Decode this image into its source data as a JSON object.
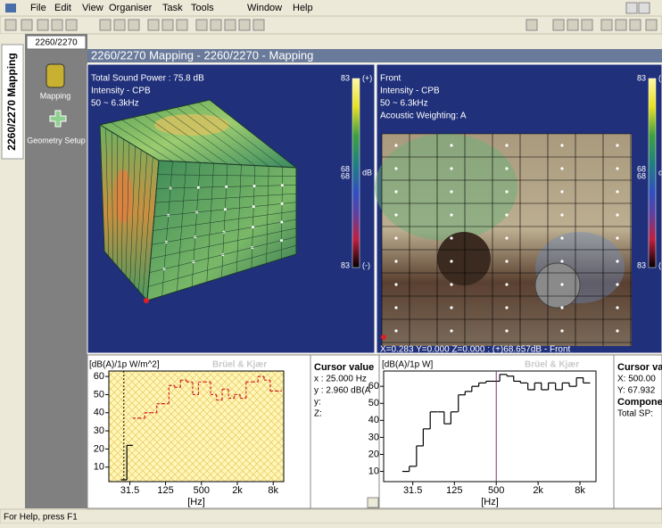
{
  "menu": [
    "File",
    "Edit",
    "View",
    "Organiser",
    "Task",
    "Tools",
    "Window",
    "Help"
  ],
  "vertical_tab": "2260/2270 Mapping",
  "panel_tab": "2260/2270",
  "window_title": "2260/2270 Mapping - 2260/2270 - Mapping",
  "sidebar": [
    "Mapping",
    "Geometry Setup"
  ],
  "views": [
    {
      "lines": [
        "Total Sound Power : 75.8 dB",
        "Intensity - CPB",
        "50 ~ 6.3kHz"
      ],
      "scale": {
        "top": "83",
        "top_sign": "(+)",
        "mid": [
          "68",
          "68"
        ],
        "unit": "dB",
        "bottom": "83",
        "bottom_sign": "(-)"
      }
    },
    {
      "lines": [
        "Front",
        "Intensity - CPB",
        "50 ~ 6.3kHz",
        "Acoustic Weighting: A"
      ],
      "scale": {
        "top": "83",
        "top_sign": "(+)",
        "mid": [
          "68",
          "68"
        ],
        "unit": "dB",
        "bottom": "83",
        "bottom_sign": "(-)"
      },
      "footer": "X=0.283 Y=0.000 Z=0.000 : (+)68.657dB - Front"
    }
  ],
  "cursor_panels": [
    {
      "title": "Cursor value",
      "lines": [
        "x : 25.000 Hz",
        "y : 2.960 dB(A",
        "y:",
        "Z:"
      ]
    },
    {
      "title": "Cursor va",
      "lines": [
        "X: 500.00",
        "Y: 67.932"
      ],
      "subtitle": "Compone",
      "more": [
        "Total SP:"
      ]
    }
  ],
  "status": "For Help, press F1",
  "chart_data": [
    {
      "type": "step",
      "y_label": "[dB(A)/1p W/m^2]",
      "watermark": "Brüel & Kjær",
      "x_label": "[Hz]",
      "x": [
        25,
        31.5,
        40,
        50,
        63,
        80,
        100,
        125,
        160,
        200,
        250,
        315,
        400,
        500,
        630,
        800,
        1000,
        1250,
        1600,
        2000,
        2500,
        3150,
        4000,
        5000,
        6300,
        8000,
        10000
      ],
      "series": [
        {
          "color": "#000000",
          "dash": false,
          "values": [
            3,
            22,
            null,
            null,
            null,
            null,
            null,
            null,
            null,
            null,
            null,
            null,
            null,
            null,
            null,
            null,
            null,
            null,
            null,
            null,
            null,
            null,
            null,
            null,
            null,
            null,
            null
          ]
        },
        {
          "color": "#d02020",
          "dash": true,
          "values": [
            null,
            null,
            37,
            37,
            40,
            40,
            45,
            45,
            55,
            54,
            58,
            57,
            50,
            57,
            57,
            50,
            47,
            53,
            48,
            50,
            48,
            57,
            57,
            60,
            58,
            52,
            52
          ]
        }
      ],
      "xscale": "log",
      "xlim": [
        14,
        12000
      ],
      "ylim": [
        2,
        63
      ],
      "xticks": [
        31.5,
        125,
        500,
        {
          "value": 2000,
          "label": "2k"
        },
        {
          "value": 8000,
          "label": "8k"
        }
      ],
      "yticks": [
        10,
        20,
        30,
        40,
        50,
        60
      ],
      "background": "hatch",
      "cursor_x": 25,
      "cursor_color": "#000000"
    },
    {
      "type": "step",
      "y_label": "[dB(A)/1p W]",
      "watermark": "Brüel & Kjær",
      "x_label": "[Hz]",
      "x": [
        25,
        31.5,
        40,
        50,
        63,
        80,
        100,
        125,
        160,
        200,
        250,
        315,
        400,
        500,
        630,
        800,
        1000,
        1250,
        1600,
        2000,
        2500,
        3150,
        4000,
        5000,
        6300,
        8000,
        10000
      ],
      "series": [
        {
          "color": "#000000",
          "dash": false,
          "values": [
            10,
            13,
            25,
            35,
            45,
            45,
            38,
            45,
            55,
            57,
            60,
            62,
            63,
            63,
            67,
            66,
            63,
            62,
            58,
            62,
            58,
            62,
            58,
            62,
            60,
            65,
            62
          ]
        }
      ],
      "xscale": "log",
      "xlim": [
        12,
        13600
      ],
      "ylim": [
        4,
        69
      ],
      "xticks": [
        31.5,
        125,
        500,
        {
          "value": 2000,
          "label": "2k"
        },
        {
          "value": 8000,
          "label": "8k"
        }
      ],
      "yticks": [
        10,
        20,
        30,
        40,
        50,
        60
      ],
      "background": "plain",
      "cursor_x": 500,
      "cursor_color": "#7a2a7a"
    }
  ]
}
